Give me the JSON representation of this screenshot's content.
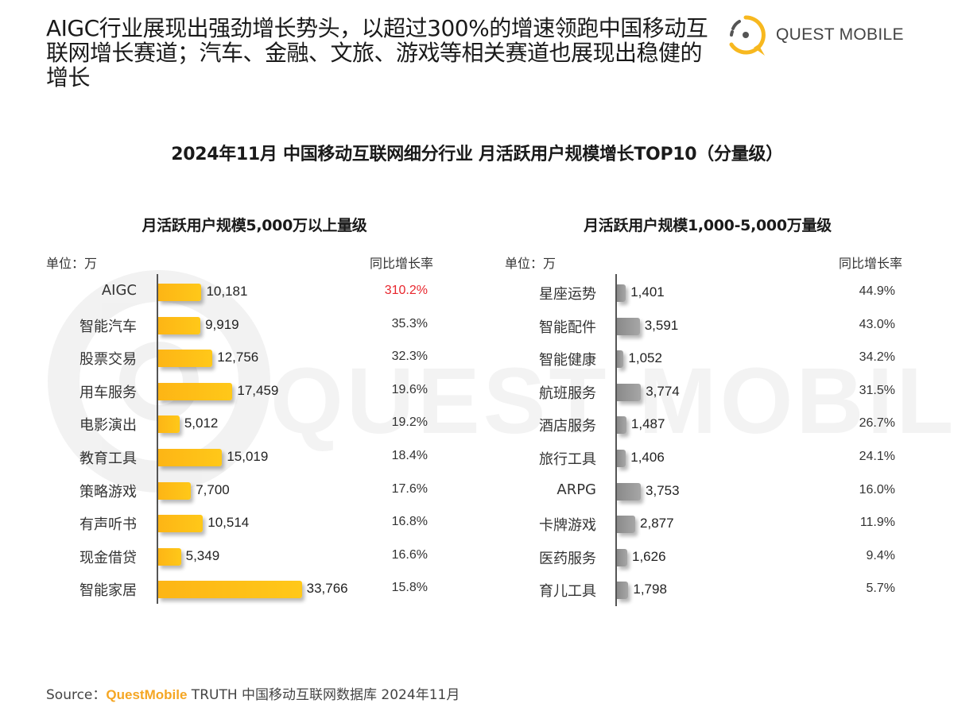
{
  "headline": "AIGC行业展现出强劲增长势头，以超过300%的增速领跑中国移动互联网增长赛道；汽车、金融、文旅、游戏等相关赛道也展现出稳健的增长",
  "logo": {
    "text": "QUEST MOBILE",
    "icon": "quest-mobile-logo-icon",
    "color": "#f7b81f"
  },
  "watermark": "QUEST MOBILE",
  "chart_title": "2024年11月 中国移动互联网细分行业 月活跃用户规模增长TOP10（分量级）",
  "source": {
    "prefix": "Source：",
    "brand": "QuestMobile",
    "suffix": " TRUTH 中国移动互联网数据库 2024年11月"
  },
  "colors": {
    "gold_bar": "#fdb515",
    "gray_bar": "#8f8f8f",
    "highlight": "#e8262d",
    "brand": "#f5a623"
  },
  "chart_data": [
    {
      "type": "bar",
      "orientation": "horizontal",
      "title": "月活跃用户规模5,000万以上量级",
      "unit_label": "单位：万",
      "rate_header": "同比增长率",
      "categories": [
        "AIGC",
        "智能汽车",
        "股票交易",
        "用车服务",
        "电影演出",
        "教育工具",
        "策略游戏",
        "有声听书",
        "现金借贷",
        "智能家居"
      ],
      "values": [
        10181,
        9919,
        12756,
        17459,
        5012,
        15019,
        7700,
        10514,
        5349,
        33766
      ],
      "value_labels": [
        "10,181",
        "9,919",
        "12,756",
        "17,459",
        "5,012",
        "15,019",
        "7,700",
        "10,514",
        "5,349",
        "33,766"
      ],
      "yoy_growth": [
        "310.2%",
        "35.3%",
        "32.3%",
        "19.6%",
        "19.2%",
        "18.4%",
        "17.6%",
        "16.8%",
        "16.6%",
        "15.8%"
      ],
      "highlight_index": 0,
      "bar_color": "#fdb515",
      "xlabel": "",
      "ylabel": "",
      "grid": false
    },
    {
      "type": "bar",
      "orientation": "horizontal",
      "title": "月活跃用户规模1,000-5,000万量级",
      "unit_label": "单位：万",
      "rate_header": "同比增长率",
      "categories": [
        "星座运势",
        "智能配件",
        "智能健康",
        "航班服务",
        "酒店服务",
        "旅行工具",
        "ARPG",
        "卡牌游戏",
        "医药服务",
        "育儿工具"
      ],
      "values": [
        1401,
        3591,
        1052,
        3774,
        1487,
        1406,
        3753,
        2877,
        1626,
        1798
      ],
      "value_labels": [
        "1,401",
        "3,591",
        "1,052",
        "3,774",
        "1,487",
        "1,406",
        "3,753",
        "2,877",
        "1,626",
        "1,798"
      ],
      "yoy_growth": [
        "44.9%",
        "43.0%",
        "34.2%",
        "31.5%",
        "26.7%",
        "24.1%",
        "16.0%",
        "11.9%",
        "9.4%",
        "5.7%"
      ],
      "bar_color": "#8f8f8f",
      "xlabel": "",
      "ylabel": "",
      "grid": false
    }
  ]
}
